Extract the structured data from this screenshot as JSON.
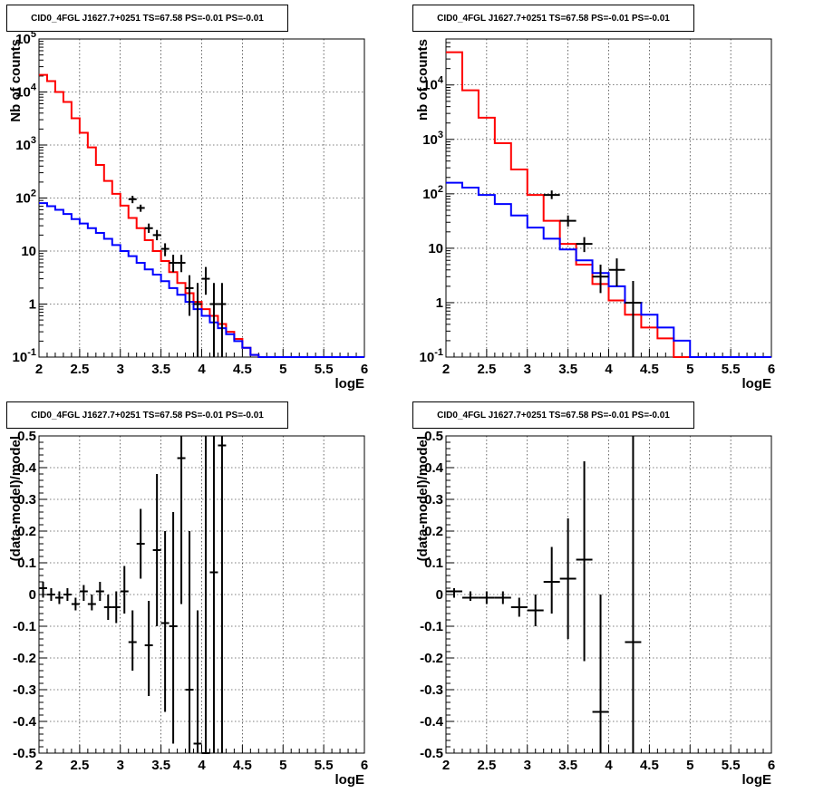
{
  "pads": [
    {
      "title": "CID0_4FGL J1627.7+0251 TS=67.58 PS=-0.01 PS=-0.01"
    },
    {
      "title": "CID0_4FGL J1627.7+0251 TS=67.58 PS=-0.01 PS=-0.01"
    },
    {
      "title": "CID0_4FGL J1627.7+0251 TS=67.58 PS=-0.01 PS=-0.01"
    },
    {
      "title": "CID0_4FGL J1627.7+0251 TS=67.58 PS=-0.01 PS=-0.01"
    }
  ],
  "colors": {
    "total_model": "#ff0000",
    "source_model": "#0000ff",
    "data": "#000000",
    "grid": "#000000"
  },
  "chart_data": [
    {
      "type": "histogram",
      "title": "CID0_4FGL J1627.7+0251 TS=67.58 PS=-0.01 PS=-0.01",
      "xlabel": "logE",
      "ylabel": "Nb of counts",
      "xlim": [
        2,
        6
      ],
      "ylim": [
        0.1,
        100000
      ],
      "ylog": true,
      "grid": true,
      "xticks": [
        "2",
        "2.5",
        "3",
        "3.5",
        "4",
        "4.5",
        "5",
        "5.5",
        "6"
      ],
      "yticks": [
        "10^-1",
        "1",
        "10",
        "10^2",
        "10^3",
        "10^4",
        "10^5"
      ],
      "bin_edges": [
        2,
        2.1,
        2.2,
        2.3,
        2.4,
        2.5,
        2.6,
        2.7,
        2.8,
        2.9,
        3,
        3.1,
        3.2,
        3.3,
        3.4,
        3.5,
        3.6,
        3.7,
        3.8,
        3.9,
        4,
        4.1,
        4.2,
        4.3,
        4.4,
        4.5,
        4.6,
        4.7,
        4.8,
        4.9,
        5,
        5.1,
        5.2,
        5.3,
        5.4,
        5.5,
        5.6,
        5.7,
        5.8,
        5.9,
        6
      ],
      "series": [
        {
          "color": "#ff0000",
          "values": [
            21000,
            16000,
            10000,
            6500,
            3200,
            1700,
            900,
            420,
            210,
            120,
            72,
            42,
            27,
            16,
            10,
            6.5,
            4,
            2.5,
            1.6,
            1.1,
            0.8,
            0.6,
            0.42,
            0.3,
            0.22,
            0.15,
            0.11,
            0.1,
            0.1,
            0.1,
            0.1,
            0.1,
            0.1,
            0.1,
            0.1,
            0.1,
            0.1,
            0.1,
            0.1,
            0.1
          ]
        },
        {
          "color": "#0000ff",
          "values": [
            80,
            70,
            60,
            50,
            40,
            33,
            27,
            22,
            17,
            13,
            10,
            8,
            6,
            4.5,
            3.6,
            2.7,
            2,
            1.5,
            1.1,
            0.8,
            0.6,
            0.45,
            0.35,
            0.27,
            0.2,
            0.15,
            0.11,
            0.1,
            0.1,
            0.1,
            0.1,
            0.1,
            0.1,
            0.1,
            0.1,
            0.1,
            0.1,
            0.1,
            0.1,
            0.1
          ]
        }
      ],
      "points": [
        {
          "x": 3.15,
          "y": 95,
          "ylo": 80,
          "yhi": 110
        },
        {
          "x": 3.25,
          "y": 65,
          "ylo": 55,
          "yhi": 75
        },
        {
          "x": 3.35,
          "y": 27,
          "ylo": 22,
          "yhi": 33
        },
        {
          "x": 3.45,
          "y": 20,
          "ylo": 16,
          "yhi": 25
        },
        {
          "x": 3.55,
          "y": 11,
          "ylo": 8,
          "yhi": 14
        },
        {
          "x": 3.65,
          "y": 6,
          "ylo": 4,
          "yhi": 8.5
        },
        {
          "x": 3.75,
          "y": 6,
          "ylo": 4,
          "yhi": 8.5
        },
        {
          "x": 3.85,
          "y": 2,
          "ylo": 0.6,
          "yhi": 3.5
        },
        {
          "x": 3.95,
          "y": 1,
          "ylo": 0.1,
          "yhi": 2.5
        },
        {
          "x": 4.05,
          "y": 3,
          "ylo": 1.5,
          "yhi": 5
        },
        {
          "x": 4.15,
          "y": 1,
          "ylo": 0.1,
          "yhi": 2.5
        },
        {
          "x": 4.25,
          "y": 1,
          "ylo": 0.1,
          "yhi": 2.5
        }
      ]
    },
    {
      "type": "histogram",
      "title": "CID0_4FGL J1627.7+0251 TS=67.58 PS=-0.01 PS=-0.01",
      "xlabel": "logE",
      "ylabel": "nb of counts",
      "xlim": [
        2,
        6
      ],
      "ylim": [
        0.1,
        70000
      ],
      "ylog": true,
      "grid": true,
      "xticks": [
        "2",
        "2.5",
        "3",
        "3.5",
        "4",
        "4.5",
        "5",
        "5.5",
        "6"
      ],
      "yticks": [
        "10^-1",
        "1",
        "10",
        "10^2",
        "10^3",
        "10^4"
      ],
      "bin_edges": [
        2,
        2.2,
        2.4,
        2.6,
        2.8,
        3,
        3.2,
        3.4,
        3.6,
        3.8,
        4,
        4.2,
        4.4,
        4.6,
        4.8,
        5,
        5.2,
        5.4,
        5.6,
        5.8,
        6
      ],
      "series": [
        {
          "color": "#ff0000",
          "values": [
            40000,
            8000,
            2500,
            850,
            280,
            95,
            32,
            12,
            5,
            2.2,
            1.1,
            0.6,
            0.35,
            0.22,
            0.1,
            0.1,
            0.1,
            0.1,
            0.1,
            0.1
          ]
        },
        {
          "color": "#0000ff",
          "values": [
            160,
            130,
            95,
            65,
            40,
            24,
            15,
            9.5,
            6,
            3.5,
            2,
            1,
            0.6,
            0.35,
            0.2,
            0.1,
            0.1,
            0.1,
            0.1,
            0.1
          ]
        }
      ],
      "points": [
        {
          "x": 3.3,
          "y": 95,
          "ylo": 80,
          "yhi": 115
        },
        {
          "x": 3.5,
          "y": 32,
          "ylo": 25,
          "yhi": 40
        },
        {
          "x": 3.7,
          "y": 12,
          "ylo": 8.5,
          "yhi": 16
        },
        {
          "x": 3.9,
          "y": 3,
          "ylo": 1.5,
          "yhi": 5
        },
        {
          "x": 4.1,
          "y": 4,
          "ylo": 2,
          "yhi": 6.5
        },
        {
          "x": 4.3,
          "y": 1,
          "ylo": 0.1,
          "yhi": 2.5
        }
      ]
    },
    {
      "type": "scatter",
      "title": "CID0_4FGL J1627.7+0251 TS=67.58 PS=-0.01 PS=-0.01",
      "xlabel": "logE",
      "ylabel": "(data-model)/model",
      "xlim": [
        2,
        6
      ],
      "ylim": [
        -0.5,
        0.5
      ],
      "grid": true,
      "xticks": [
        "2",
        "2.5",
        "3",
        "3.5",
        "4",
        "4.5",
        "5",
        "5.5",
        "6"
      ],
      "yticks": [
        "-0.5",
        "-0.4",
        "-0.3",
        "-0.2",
        "-0.1",
        "0",
        "0.1",
        "0.2",
        "0.3",
        "0.4",
        "0.5"
      ],
      "points": [
        {
          "x": 2.05,
          "y": 0.02,
          "ylo": -0.01,
          "yhi": 0.04
        },
        {
          "x": 2.15,
          "y": 0.0,
          "ylo": -0.02,
          "yhi": 0.02
        },
        {
          "x": 2.25,
          "y": -0.01,
          "ylo": -0.03,
          "yhi": 0.01
        },
        {
          "x": 2.35,
          "y": 0.0,
          "ylo": -0.02,
          "yhi": 0.02
        },
        {
          "x": 2.45,
          "y": -0.03,
          "ylo": -0.05,
          "yhi": -0.01
        },
        {
          "x": 2.55,
          "y": 0.01,
          "ylo": -0.02,
          "yhi": 0.03
        },
        {
          "x": 2.65,
          "y": -0.03,
          "ylo": -0.05,
          "yhi": 0.0
        },
        {
          "x": 2.75,
          "y": 0.01,
          "ylo": -0.02,
          "yhi": 0.04
        },
        {
          "x": 2.85,
          "y": -0.04,
          "ylo": -0.08,
          "yhi": 0.0
        },
        {
          "x": 2.95,
          "y": -0.04,
          "ylo": -0.09,
          "yhi": 0.01
        },
        {
          "x": 3.05,
          "y": 0.01,
          "ylo": -0.06,
          "yhi": 0.09
        },
        {
          "x": 3.15,
          "y": -0.15,
          "ylo": -0.24,
          "yhi": -0.05
        },
        {
          "x": 3.25,
          "y": 0.16,
          "ylo": 0.05,
          "yhi": 0.27
        },
        {
          "x": 3.35,
          "y": -0.16,
          "ylo": -0.32,
          "yhi": -0.02
        },
        {
          "x": 3.45,
          "y": 0.14,
          "ylo": -0.1,
          "yhi": 0.38
        },
        {
          "x": 3.55,
          "y": -0.09,
          "ylo": -0.37,
          "yhi": 0.2
        },
        {
          "x": 3.65,
          "y": -0.1,
          "ylo": -0.47,
          "yhi": 0.26
        },
        {
          "x": 3.75,
          "y": 0.43,
          "ylo": -0.03,
          "yhi": 0.5
        },
        {
          "x": 3.85,
          "y": -0.3,
          "ylo": -0.5,
          "yhi": 0.2
        },
        {
          "x": 3.95,
          "y": -0.47,
          "ylo": -0.5,
          "yhi": -0.05
        },
        {
          "x": 4.05,
          "y": -0.5,
          "ylo": -0.5,
          "yhi": 0.5
        },
        {
          "x": 4.15,
          "y": 0.07,
          "ylo": -0.5,
          "yhi": 0.5
        },
        {
          "x": 4.25,
          "y": 0.47,
          "ylo": -0.5,
          "yhi": 0.5
        }
      ]
    },
    {
      "type": "scatter",
      "title": "CID0_4FGL J1627.7+0251 TS=67.58 PS=-0.01 PS=-0.01",
      "xlabel": "logE",
      "ylabel": "(data-model)/model",
      "xlim": [
        2,
        6
      ],
      "ylim": [
        -0.5,
        0.5
      ],
      "grid": true,
      "xticks": [
        "2",
        "2.5",
        "3",
        "3.5",
        "4",
        "4.5",
        "5",
        "5.5",
        "6"
      ],
      "yticks": [
        "-0.5",
        "-0.4",
        "-0.3",
        "-0.2",
        "-0.1",
        "0",
        "0.1",
        "0.2",
        "0.3",
        "0.4",
        "0.5"
      ],
      "points": [
        {
          "x": 2.1,
          "y": 0.01,
          "ylo": -0.01,
          "yhi": 0.02
        },
        {
          "x": 2.3,
          "y": -0.01,
          "ylo": -0.02,
          "yhi": 0.01
        },
        {
          "x": 2.5,
          "y": -0.01,
          "ylo": -0.03,
          "yhi": 0.01
        },
        {
          "x": 2.7,
          "y": -0.01,
          "ylo": -0.03,
          "yhi": 0.01
        },
        {
          "x": 2.9,
          "y": -0.04,
          "ylo": -0.07,
          "yhi": -0.01
        },
        {
          "x": 3.1,
          "y": -0.05,
          "ylo": -0.1,
          "yhi": 0.0
        },
        {
          "x": 3.3,
          "y": 0.04,
          "ylo": -0.06,
          "yhi": 0.15
        },
        {
          "x": 3.5,
          "y": 0.05,
          "ylo": -0.14,
          "yhi": 0.24
        },
        {
          "x": 3.7,
          "y": 0.11,
          "ylo": -0.21,
          "yhi": 0.42
        },
        {
          "x": 3.9,
          "y": -0.37,
          "ylo": -0.5,
          "yhi": 0.0
        },
        {
          "x": 4.3,
          "y": -0.15,
          "ylo": -0.5,
          "yhi": 0.5
        }
      ]
    }
  ]
}
